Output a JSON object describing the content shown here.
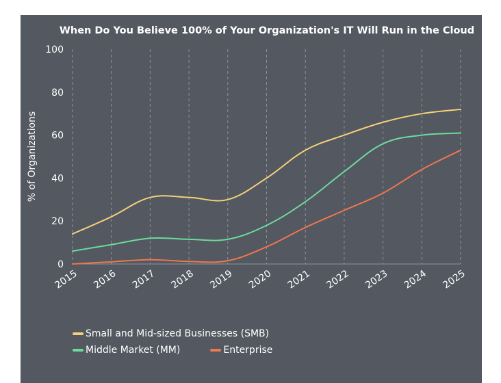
{
  "chart_data": {
    "type": "line",
    "title": "When Do You Believe 100% of Your Organization's IT Will Run in the Cloud",
    "xlabel": "",
    "ylabel": "% of Organizations",
    "ylim": [
      0,
      100
    ],
    "yticks": [
      "0",
      "20",
      "40",
      "60",
      "80",
      "100"
    ],
    "categories": [
      "2015",
      "2016",
      "2017",
      "2018",
      "2019",
      "2020",
      "2021",
      "2022",
      "2023",
      "2024",
      "2025"
    ],
    "grid": "vertical dashed",
    "legend_position": "bottom-left",
    "series": [
      {
        "name": "Small and Mid-sized Businesses (SMB)",
        "color": "#f5d078",
        "values": [
          14,
          22,
          31,
          31,
          30,
          40,
          53,
          60,
          66,
          70,
          72
        ]
      },
      {
        "name": "Middle Market (MM)",
        "color": "#6ddb9c",
        "values": [
          6,
          9,
          12,
          11.5,
          11.5,
          18,
          29,
          43,
          56,
          60,
          61
        ]
      },
      {
        "name": "Enterprise",
        "color": "#f0774e",
        "values": [
          0,
          1,
          2,
          1.2,
          1.5,
          8,
          17,
          25,
          33,
          44,
          53
        ]
      }
    ]
  }
}
